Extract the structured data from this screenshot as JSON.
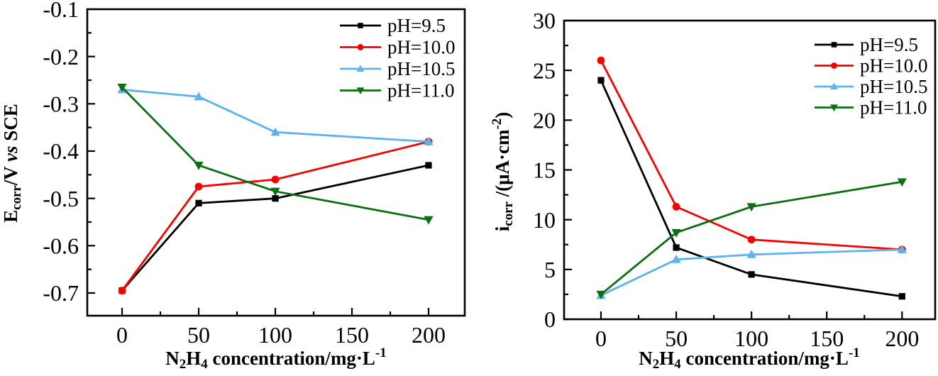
{
  "figure": {
    "background": "#ffffff"
  },
  "chart_data": [
    {
      "name": "ecorr",
      "type": "line",
      "title": "",
      "xlabel": "N2H4 concentration/mg·L-1",
      "xlabel_parts": [
        {
          "t": "N"
        },
        {
          "t": "2",
          "sub": true
        },
        {
          "t": "H"
        },
        {
          "t": "4",
          "sub": true
        },
        {
          "t": " concentration/mg·L"
        },
        {
          "t": "-1",
          "sup": true
        }
      ],
      "ylabel": "Ecorr/V vs SCE",
      "ylabel_parts": [
        {
          "t": "E"
        },
        {
          "t": "corr",
          "sub": true
        },
        {
          "t": "/V "
        },
        {
          "t": "vs",
          "italic": true
        },
        {
          "t": " SCE"
        }
      ],
      "x": [
        0,
        50,
        100,
        200
      ],
      "xlim": [
        -22.7,
        223.6
      ],
      "ylim": [
        -0.748,
        -0.1
      ],
      "xticks": [
        0,
        50,
        100,
        150,
        200
      ],
      "yticks": [
        -0.1,
        -0.2,
        -0.3,
        -0.4,
        -0.5,
        -0.6,
        -0.7
      ],
      "ytick_decimals": 1,
      "xminor_step": 25,
      "yminor_step": 0.05,
      "grid": false,
      "legend_position": "top-right-inside",
      "series": [
        {
          "name": "pH=9.5",
          "color": "#000000",
          "marker": "square",
          "values": [
            -0.695,
            -0.51,
            -0.5,
            -0.43
          ]
        },
        {
          "name": "pH=10.0",
          "color": "#fa0000",
          "marker": "circle",
          "values": [
            -0.695,
            -0.475,
            -0.46,
            -0.38
          ]
        },
        {
          "name": "pH=10.5",
          "color": "#5db4ec",
          "marker": "triangle-up",
          "values": [
            -0.27,
            -0.285,
            -0.36,
            -0.38
          ]
        },
        {
          "name": "pH=11.0",
          "color": "#0b7013",
          "marker": "triangle-down",
          "values": [
            -0.265,
            -0.43,
            -0.485,
            -0.545
          ]
        }
      ]
    },
    {
      "name": "icorr",
      "type": "line",
      "title": "",
      "xlabel": "N2H4 concentration/mg·L-1",
      "xlabel_parts": [
        {
          "t": "N"
        },
        {
          "t": "2",
          "sub": true
        },
        {
          "t": "H"
        },
        {
          "t": "4",
          "sub": true
        },
        {
          "t": " concentration/mg·L"
        },
        {
          "t": "-1",
          "sup": true
        }
      ],
      "ylabel": "icorr /(μA·cm-2)",
      "ylabel_parts": [
        {
          "t": "i"
        },
        {
          "t": "corr",
          "sub": true
        },
        {
          "t": " /(μA·cm"
        },
        {
          "t": "-2",
          "sup": true
        },
        {
          "t": ")"
        }
      ],
      "x": [
        0,
        50,
        100,
        200
      ],
      "xlim": [
        -24.5,
        222
      ],
      "ylim": [
        0,
        30
      ],
      "xticks": [
        0,
        50,
        100,
        150,
        200
      ],
      "yticks": [
        0,
        5,
        10,
        15,
        20,
        25,
        30
      ],
      "ytick_decimals": 0,
      "xminor_step": 25,
      "yminor_step": 2.5,
      "grid": false,
      "legend_position": "top-right-inside",
      "series": [
        {
          "name": "pH=9.5",
          "color": "#000000",
          "marker": "square",
          "values": [
            24,
            7.2,
            4.5,
            2.3
          ]
        },
        {
          "name": "pH=10.0",
          "color": "#fa0000",
          "marker": "circle",
          "values": [
            26,
            11.3,
            8.0,
            7.0
          ]
        },
        {
          "name": "pH=10.5",
          "color": "#5db4ec",
          "marker": "triangle-up",
          "values": [
            2.4,
            6.0,
            6.5,
            7.0
          ]
        },
        {
          "name": "pH=11.0",
          "color": "#0b7013",
          "marker": "triangle-down",
          "values": [
            2.5,
            8.7,
            11.3,
            13.8
          ]
        }
      ]
    }
  ]
}
